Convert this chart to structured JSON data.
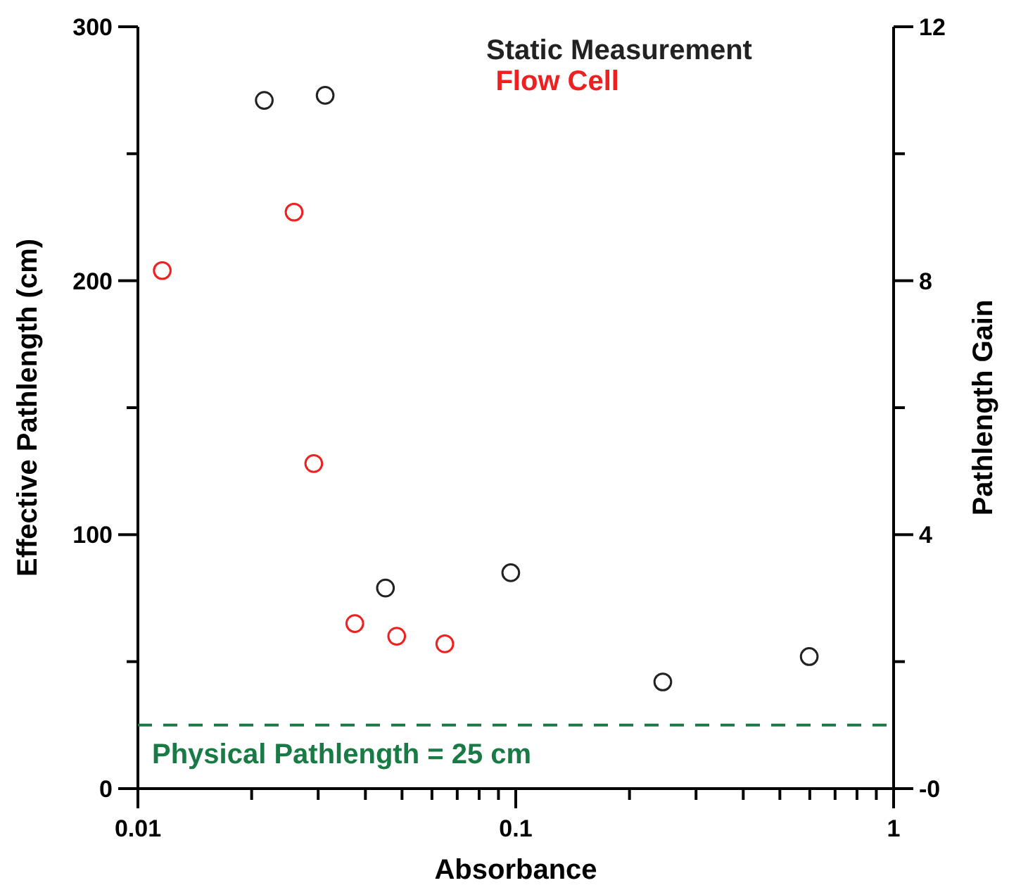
{
  "chart_data": {
    "type": "scatter",
    "xlabel": "Absorbance",
    "ylabel": "Effective Pathlength (cm)",
    "y2label": "Pathlength Gain",
    "log": "x",
    "marker": "circle",
    "legend": "top",
    "grid": false,
    "xlim": [
      0.01,
      1
    ],
    "xticks": [
      0.01,
      {
        "value": 0.02,
        "label": null
      },
      {
        "value": 0.03,
        "label": null
      },
      {
        "value": 0.04,
        "label": null
      },
      {
        "value": 0.05,
        "label": null
      },
      {
        "value": 0.06,
        "label": null
      },
      {
        "value": 0.07,
        "label": null
      },
      {
        "value": 0.08,
        "label": null
      },
      {
        "value": 0.09,
        "label": null
      },
      0.1,
      {
        "value": 0.2,
        "label": null
      },
      {
        "value": 0.3,
        "label": null
      },
      {
        "value": 0.4,
        "label": null
      },
      {
        "value": 0.5,
        "label": null
      },
      {
        "value": 0.6,
        "label": null
      },
      {
        "value": 0.7,
        "label": null
      },
      {
        "value": 0.8,
        "label": null
      },
      {
        "value": 0.9,
        "label": null
      },
      1
    ],
    "ylim": [
      0,
      300
    ],
    "yticks": [
      0,
      {
        "value": 50,
        "label": null
      },
      100,
      {
        "value": 150,
        "label": null
      },
      200,
      {
        "value": 250,
        "label": null
      },
      300
    ],
    "y2lim": [
      0,
      12
    ],
    "y2ticks": [
      {
        "value": 0,
        "label": "-0"
      },
      {
        "value": 2,
        "label": null
      },
      4,
      {
        "value": 6,
        "label": null
      },
      8,
      {
        "value": 10,
        "label": null
      },
      12
    ],
    "ref_lines": [
      {
        "axis": "y",
        "value": 25,
        "label": "Physical Pathlength = 25 cm",
        "color": "#1a7a45",
        "line_style": "dashed"
      }
    ],
    "series": [
      {
        "name": "Static Measurement",
        "color": "#222222",
        "x": [
          0.0216,
          0.0313,
          0.0452,
          0.097,
          0.245,
          0.598
        ],
        "values": [
          271,
          273,
          79,
          85,
          42,
          52
        ]
      },
      {
        "name": "Flow Cell",
        "color": "#ee2020",
        "x": [
          0.0116,
          0.0259,
          0.0292,
          0.0375,
          0.0484,
          0.0649
        ],
        "values": [
          204,
          227,
          128,
          65,
          60,
          57
        ]
      }
    ]
  }
}
